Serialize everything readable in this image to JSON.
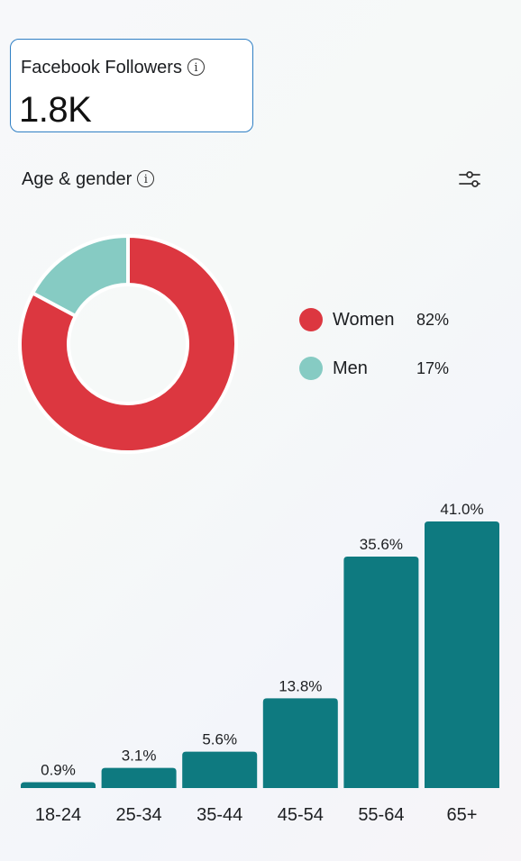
{
  "followers_card": {
    "label": "Facebook Followers",
    "value": "1.8K",
    "info_icon": "info-icon"
  },
  "section": {
    "title": "Age & gender",
    "info_icon": "info-icon",
    "filter_icon": "filter-sliders-icon"
  },
  "colors": {
    "women": "#dc3740",
    "men": "#86cbc3",
    "bar": "#0e7a80",
    "card_border": "#2f7fc4"
  },
  "chart_data": [
    {
      "type": "pie",
      "donut": true,
      "categories": [
        "Women",
        "Men"
      ],
      "values": [
        82,
        17
      ],
      "labels": [
        "82%",
        "17%"
      ]
    },
    {
      "type": "bar",
      "categories": [
        "18-24",
        "25-34",
        "35-44",
        "45-54",
        "55-64",
        "65+"
      ],
      "values": [
        0.9,
        3.1,
        5.6,
        13.8,
        35.6,
        41.0
      ],
      "labels": [
        "0.9%",
        "3.1%",
        "5.6%",
        "13.8%",
        "35.6%",
        "41.0%"
      ],
      "ylim": [
        0,
        41.0
      ],
      "grid": false
    }
  ]
}
